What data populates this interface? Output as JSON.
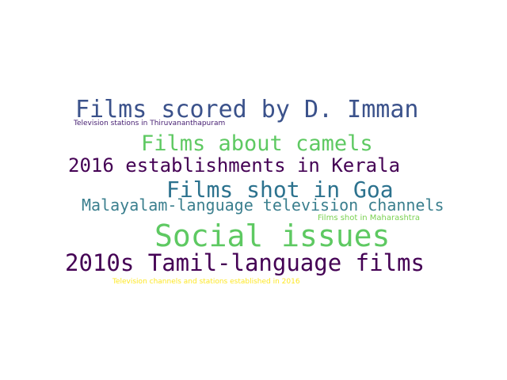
{
  "word_cloud": {
    "words": [
      {
        "text": "Films scored by D. Imman",
        "color": "#3b528b"
      },
      {
        "text": "Television stations in Thiruvananthapuram",
        "color": "#482173"
      },
      {
        "text": "Films about camels",
        "color": "#5ec962"
      },
      {
        "text": "2016 establishments in Kerala",
        "color": "#440154"
      },
      {
        "text": "Films shot in Goa",
        "color": "#2c728e"
      },
      {
        "text": "Malayalam-language television channels",
        "color": "#3b7f8e"
      },
      {
        "text": "Films shot in Maharashtra",
        "color": "#7ad151"
      },
      {
        "text": "Social issues",
        "color": "#5ec962"
      },
      {
        "text": "2010s Tamil-language films",
        "color": "#440154"
      },
      {
        "text": "Television channels and stations established in 2016",
        "color": "#fde725"
      }
    ]
  }
}
